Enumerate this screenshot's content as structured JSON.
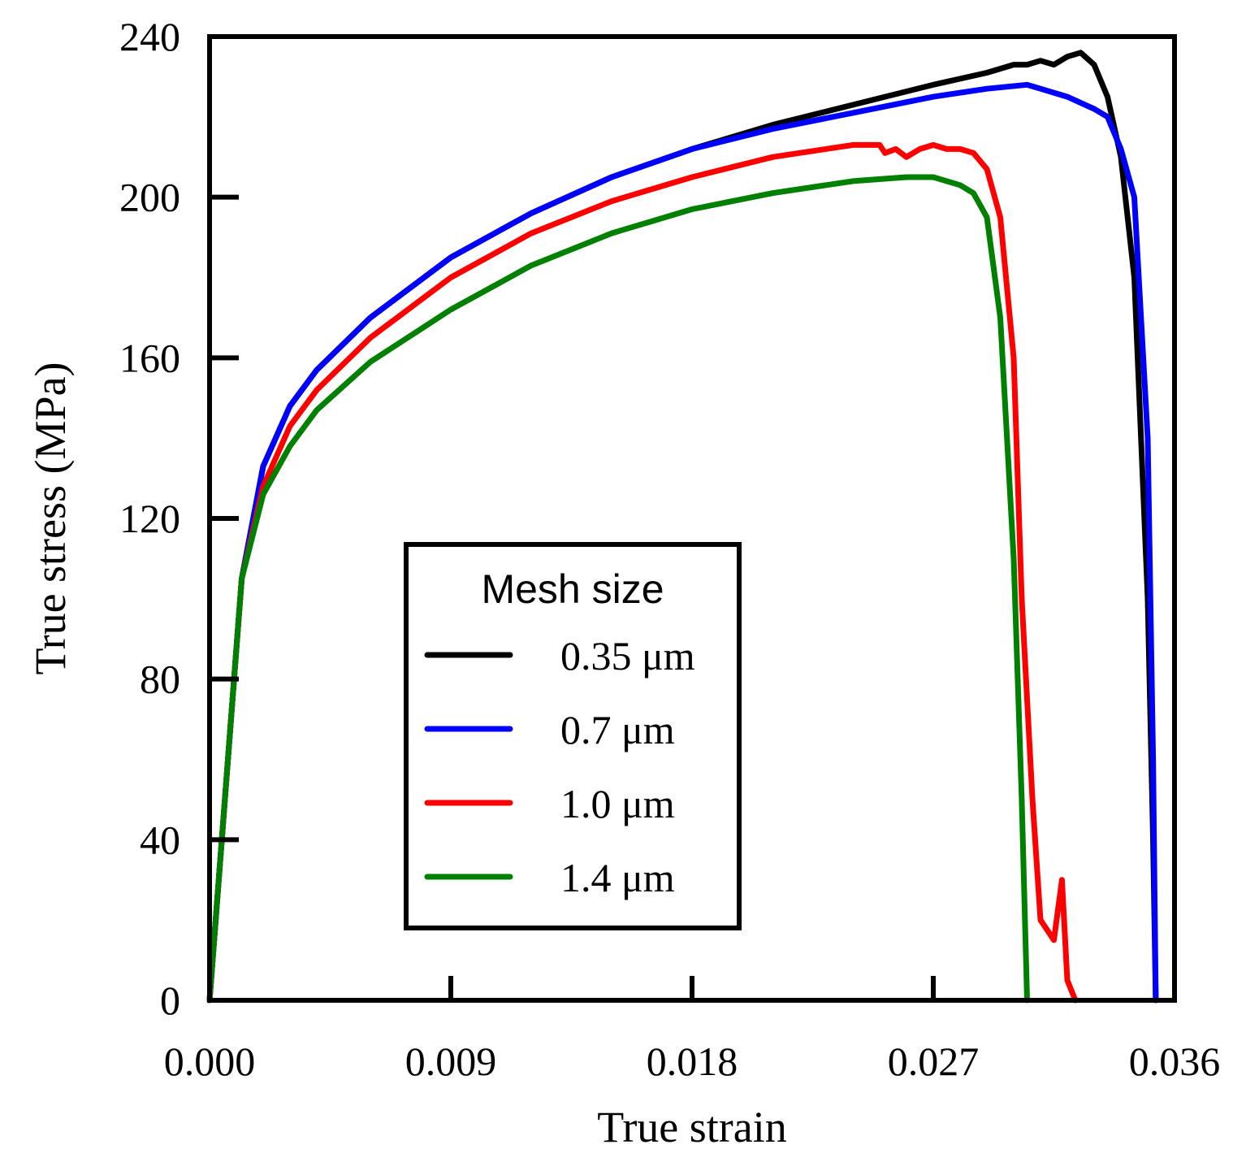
{
  "chart_data": {
    "type": "line",
    "title": "",
    "xlabel": "True strain",
    "ylabel": "True stress (MPa)",
    "xlim": [
      0,
      0.036
    ],
    "ylim": [
      0,
      240
    ],
    "x_ticks": [
      "0.000",
      "0.009",
      "0.018",
      "0.027",
      "0.036"
    ],
    "y_ticks": [
      "0",
      "40",
      "80",
      "120",
      "160",
      "200",
      "240"
    ],
    "grid": false,
    "legend": {
      "title": "Mesh size",
      "placement": "lower-center"
    },
    "series": [
      {
        "name": "0.35 μm",
        "color": "#000000",
        "points": [
          [
            0,
            0
          ],
          [
            0.0012,
            105
          ],
          [
            0.002,
            133
          ],
          [
            0.003,
            148
          ],
          [
            0.004,
            157
          ],
          [
            0.006,
            170
          ],
          [
            0.009,
            185
          ],
          [
            0.012,
            196
          ],
          [
            0.015,
            205
          ],
          [
            0.018,
            212
          ],
          [
            0.021,
            218
          ],
          [
            0.024,
            223
          ],
          [
            0.027,
            228
          ],
          [
            0.029,
            231
          ],
          [
            0.03,
            233
          ],
          [
            0.0305,
            233
          ],
          [
            0.031,
            234
          ],
          [
            0.0315,
            233
          ],
          [
            0.032,
            235
          ],
          [
            0.0325,
            236
          ],
          [
            0.033,
            233
          ],
          [
            0.0335,
            225
          ],
          [
            0.034,
            210
          ],
          [
            0.0345,
            180
          ],
          [
            0.035,
            100
          ],
          [
            0.0352,
            40
          ],
          [
            0.0353,
            0
          ]
        ]
      },
      {
        "name": "0.7 μm",
        "color": "#0000ff",
        "points": [
          [
            0,
            0
          ],
          [
            0.0012,
            105
          ],
          [
            0.002,
            133
          ],
          [
            0.003,
            148
          ],
          [
            0.004,
            157
          ],
          [
            0.006,
            170
          ],
          [
            0.009,
            185
          ],
          [
            0.012,
            196
          ],
          [
            0.015,
            205
          ],
          [
            0.018,
            212
          ],
          [
            0.021,
            217
          ],
          [
            0.024,
            221
          ],
          [
            0.027,
            225
          ],
          [
            0.029,
            227
          ],
          [
            0.0305,
            228
          ],
          [
            0.031,
            227
          ],
          [
            0.032,
            225
          ],
          [
            0.033,
            222
          ],
          [
            0.0335,
            220
          ],
          [
            0.034,
            212
          ],
          [
            0.0345,
            200
          ],
          [
            0.035,
            140
          ],
          [
            0.0352,
            60
          ],
          [
            0.0353,
            0
          ]
        ]
      },
      {
        "name": "1.0 μm",
        "color": "#ff0000",
        "points": [
          [
            0,
            0
          ],
          [
            0.0012,
            105
          ],
          [
            0.002,
            128
          ],
          [
            0.003,
            143
          ],
          [
            0.004,
            152
          ],
          [
            0.006,
            165
          ],
          [
            0.009,
            180
          ],
          [
            0.012,
            191
          ],
          [
            0.015,
            199
          ],
          [
            0.018,
            205
          ],
          [
            0.021,
            210
          ],
          [
            0.024,
            213
          ],
          [
            0.025,
            213
          ],
          [
            0.0252,
            211
          ],
          [
            0.0256,
            212
          ],
          [
            0.026,
            210
          ],
          [
            0.0265,
            212
          ],
          [
            0.027,
            213
          ],
          [
            0.0275,
            212
          ],
          [
            0.028,
            212
          ],
          [
            0.0285,
            211
          ],
          [
            0.029,
            207
          ],
          [
            0.0295,
            195
          ],
          [
            0.03,
            160
          ],
          [
            0.0303,
            100
          ],
          [
            0.0307,
            50
          ],
          [
            0.031,
            20
          ],
          [
            0.0315,
            15
          ],
          [
            0.0318,
            30
          ],
          [
            0.032,
            5
          ],
          [
            0.0323,
            0
          ]
        ]
      },
      {
        "name": "1.4 μm",
        "color": "#008000",
        "points": [
          [
            0,
            0
          ],
          [
            0.0012,
            105
          ],
          [
            0.002,
            126
          ],
          [
            0.003,
            138
          ],
          [
            0.004,
            147
          ],
          [
            0.006,
            159
          ],
          [
            0.009,
            172
          ],
          [
            0.012,
            183
          ],
          [
            0.015,
            191
          ],
          [
            0.018,
            197
          ],
          [
            0.021,
            201
          ],
          [
            0.024,
            204
          ],
          [
            0.026,
            205
          ],
          [
            0.027,
            205
          ],
          [
            0.028,
            203
          ],
          [
            0.0285,
            201
          ],
          [
            0.029,
            195
          ],
          [
            0.0295,
            170
          ],
          [
            0.03,
            110
          ],
          [
            0.0303,
            50
          ],
          [
            0.0305,
            0
          ]
        ]
      }
    ]
  }
}
